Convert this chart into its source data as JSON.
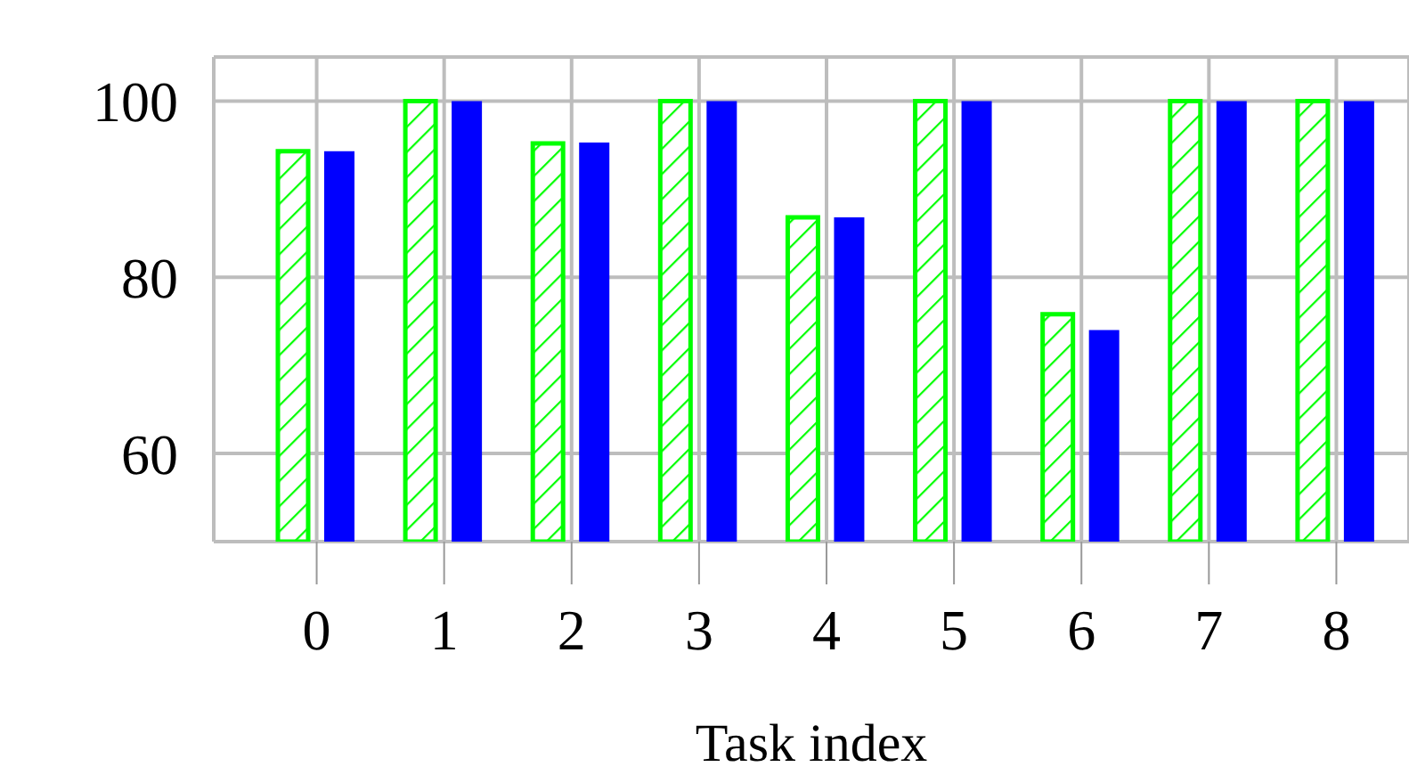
{
  "chart_data": {
    "type": "bar",
    "xlabel": "Task index",
    "categories": [
      "0",
      "1",
      "2",
      "3",
      "4",
      "5",
      "6",
      "7",
      "8"
    ],
    "series": [
      {
        "color": "#00ff00",
        "values": [
          94.3,
          100,
          95.2,
          100,
          86.8,
          100,
          75.8,
          100,
          100
        ]
      },
      {
        "color": "#0000ff",
        "values": [
          94.3,
          100,
          95.3,
          100,
          86.8,
          100,
          74,
          100,
          100
        ]
      }
    ],
    "ylim": [
      50,
      105
    ],
    "yticks": [
      60,
      80,
      100
    ],
    "grid": true
  }
}
